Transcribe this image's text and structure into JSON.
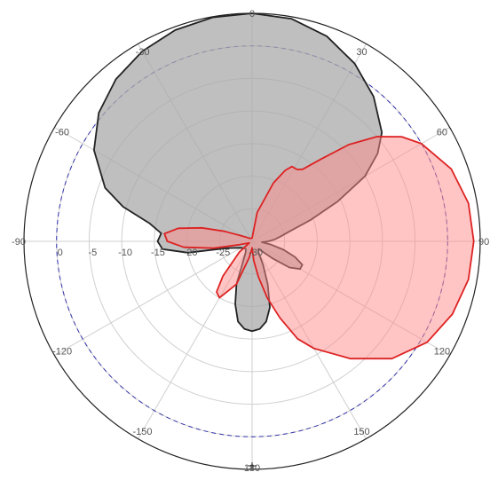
{
  "chart_data": {
    "type": "polar",
    "title": "",
    "angle_unit": "deg",
    "angle_range": [
      -180,
      180
    ],
    "zero_direction": "top",
    "angle_ticks": [
      {
        "value": 0,
        "label": "0"
      },
      {
        "value": 30,
        "label": "30"
      },
      {
        "value": 60,
        "label": "60"
      },
      {
        "value": 90,
        "label": "90"
      },
      {
        "value": 120,
        "label": "120"
      },
      {
        "value": 150,
        "label": "150"
      },
      {
        "value": 180,
        "label": "180"
      },
      {
        "value": -150,
        "label": "-150"
      },
      {
        "value": -120,
        "label": "-120"
      },
      {
        "value": -90,
        "label": "-90"
      },
      {
        "value": -60,
        "label": "-60"
      },
      {
        "value": -30,
        "label": "-30"
      }
    ],
    "radial_range": [
      -30,
      5
    ],
    "radial_ticks": [
      {
        "value": 0,
        "label": "0"
      },
      {
        "value": -5,
        "label": "-5"
      },
      {
        "value": -10,
        "label": "-10"
      },
      {
        "value": -15,
        "label": "-15"
      },
      {
        "value": -20,
        "label": "-20"
      },
      {
        "value": -25,
        "label": "-25"
      },
      {
        "value": -30,
        "label": "-30"
      }
    ],
    "reference_circle": {
      "value": 0,
      "color": "#3333aa",
      "style": "dashed"
    },
    "grid": true,
    "series": [
      {
        "color": "#222222",
        "fill": "#a9a9a9",
        "fill_opacity": 0.75,
        "points": [
          [
            0,
            5
          ],
          [
            10,
            4.7
          ],
          [
            20,
            3.5
          ],
          [
            30,
            1.5
          ],
          [
            40,
            -1
          ],
          [
            50,
            -4
          ],
          [
            55,
            -6.5
          ],
          [
            60,
            -10
          ],
          [
            65,
            -15.5
          ],
          [
            70,
            -20.5
          ],
          [
            75,
            -24
          ],
          [
            80,
            -25.5
          ],
          [
            85,
            -26.5
          ],
          [
            90,
            -27.5
          ],
          [
            95,
            -28.5
          ],
          [
            100,
            -27
          ],
          [
            105,
            -25
          ],
          [
            110,
            -23
          ],
          [
            115,
            -21.5
          ],
          [
            120,
            -21.5
          ],
          [
            125,
            -23
          ],
          [
            130,
            -26
          ],
          [
            140,
            -28.5
          ],
          [
            150,
            -28
          ],
          [
            155,
            -26
          ],
          [
            160,
            -23
          ],
          [
            165,
            -19.5
          ],
          [
            170,
            -17.5
          ],
          [
            175,
            -16.5
          ],
          [
            180,
            -16.2
          ],
          [
            -175,
            -16.5
          ],
          [
            -170,
            -17.5
          ],
          [
            -165,
            -20
          ],
          [
            -160,
            -23
          ],
          [
            -150,
            -28
          ],
          [
            -140,
            -28.5
          ],
          [
            -120,
            -28
          ],
          [
            -105,
            -26
          ],
          [
            -100,
            -20
          ],
          [
            -95,
            -16.2
          ],
          [
            -90,
            -15.5
          ],
          [
            -85,
            -16
          ],
          [
            -80,
            -14
          ],
          [
            -75,
            -9.5
          ],
          [
            -70,
            -6
          ],
          [
            -60,
            -2
          ],
          [
            -50,
            0.7
          ],
          [
            -40,
            2.5
          ],
          [
            -30,
            3.7
          ],
          [
            -20,
            4.5
          ],
          [
            -10,
            4.9
          ]
        ]
      },
      {
        "color": "#dd2222",
        "fill": "#ff8c8c",
        "fill_opacity": 0.5,
        "points": [
          [
            0,
            -29.5
          ],
          [
            10,
            -25.5
          ],
          [
            20,
            -20.5
          ],
          [
            25,
            -18
          ],
          [
            28,
            -17
          ],
          [
            32,
            -17
          ],
          [
            35,
            -16.5
          ],
          [
            40,
            -13.5
          ],
          [
            45,
            -9
          ],
          [
            50,
            -5
          ],
          [
            55,
            -2
          ],
          [
            60,
            0
          ],
          [
            70,
            2.5
          ],
          [
            80,
            3.7
          ],
          [
            90,
            4
          ],
          [
            100,
            3.7
          ],
          [
            110,
            2.7
          ],
          [
            120,
            1
          ],
          [
            130,
            -2
          ],
          [
            140,
            -6.5
          ],
          [
            150,
            -11
          ],
          [
            155,
            -13.5
          ],
          [
            160,
            -17.5
          ],
          [
            165,
            -21
          ],
          [
            170,
            -24.5
          ],
          [
            175,
            -27
          ],
          [
            180,
            -29
          ],
          [
            -175,
            -28.5
          ],
          [
            -170,
            -27.5
          ],
          [
            -160,
            -23
          ],
          [
            -150,
            -20
          ],
          [
            -145,
            -20.5
          ],
          [
            -140,
            -23
          ],
          [
            -130,
            -27.5
          ],
          [
            -120,
            -29.5
          ],
          [
            -105,
            -28
          ],
          [
            -100,
            -24
          ],
          [
            -95,
            -19.5
          ],
          [
            -90,
            -17
          ],
          [
            -85,
            -16.5
          ],
          [
            -80,
            -18.5
          ],
          [
            -75,
            -22
          ],
          [
            -70,
            -25.5
          ],
          [
            -60,
            -28.5
          ],
          [
            -30,
            -29.5
          ]
        ]
      }
    ]
  }
}
